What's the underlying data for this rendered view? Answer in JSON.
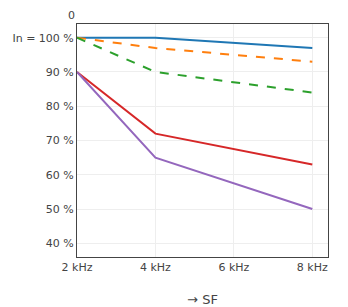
{
  "chart_data": {
    "type": "line",
    "xlabel": "→ SF",
    "x": [
      2000,
      4000,
      8000
    ],
    "series": [
      {
        "values": [
          100,
          100,
          97
        ],
        "line_style": "solid"
      },
      {
        "values": [
          100,
          97,
          93
        ],
        "line_style": "dashed"
      },
      {
        "values": [
          100,
          90,
          84
        ],
        "line_style": "dashed"
      },
      {
        "values": [
          90,
          72,
          63
        ],
        "line_style": "solid"
      },
      {
        "values": [
          90,
          65,
          50
        ],
        "line_style": "solid"
      }
    ],
    "xlim": [
      2000,
      8400
    ],
    "xticks": [
      {
        "value": 2000,
        "label": "2 kHz"
      },
      {
        "value": 4000,
        "label": "4 kHz"
      },
      {
        "value": 6000,
        "label": "6 kHz"
      },
      {
        "value": 8000,
        "label": "8 kHz"
      }
    ],
    "ylim": [
      36,
      104
    ],
    "yticks": [
      {
        "value": 40,
        "label": "40 %"
      },
      {
        "value": 50,
        "label": "50 %"
      },
      {
        "value": 60,
        "label": "60 %"
      },
      {
        "value": 70,
        "label": "70 %"
      },
      {
        "value": 80,
        "label": "80 %"
      },
      {
        "value": 90,
        "label": "90 %"
      },
      {
        "value": 100,
        "label": "In = 100 %"
      }
    ],
    "annotations": [
      {
        "text": "0"
      }
    ],
    "grid": true
  }
}
